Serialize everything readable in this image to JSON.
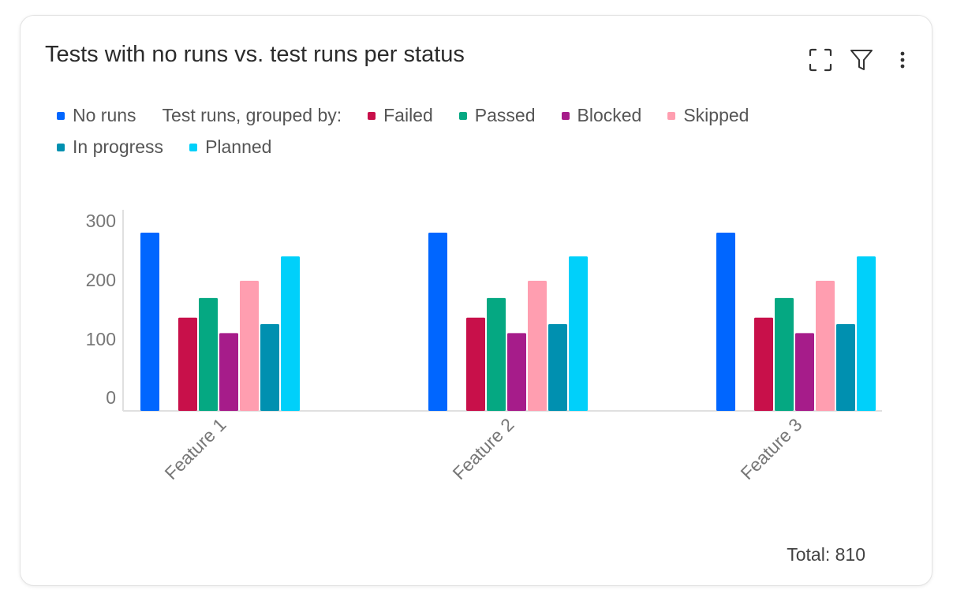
{
  "widget": {
    "title": "Tests with no runs vs. test runs per status",
    "total_label": "Total: 810"
  },
  "icons": {
    "expand": "expand-icon",
    "filter": "filter-icon",
    "more": "more-vertical-icon"
  },
  "legend": {
    "caption": "Test runs, grouped by:",
    "no_runs": {
      "label": "No runs",
      "color": "#0066ff"
    },
    "statuses": [
      {
        "label": "Failed",
        "color": "#c8104a"
      },
      {
        "label": "Passed",
        "color": "#05a882"
      },
      {
        "label": "Blocked",
        "color": "#a61c8a"
      },
      {
        "label": "Skipped",
        "color": "#ff9eb0"
      },
      {
        "label": "In progress",
        "color": "#0090b0"
      },
      {
        "label": "Planned",
        "color": "#00d0fa"
      }
    ]
  },
  "chart_data": {
    "type": "bar",
    "categories": [
      "Feature 1",
      "Feature 2",
      "Feature 3"
    ],
    "ylim": [
      0,
      300
    ],
    "yticks": [
      0,
      100,
      200,
      300
    ],
    "series": [
      {
        "name": "No runs",
        "color": "#0066ff",
        "values": [
          300,
          300,
          300
        ]
      },
      {
        "name": "Failed",
        "color": "#c8104a",
        "values": [
          157,
          157,
          157
        ]
      },
      {
        "name": "Passed",
        "color": "#05a882",
        "values": [
          190,
          190,
          190
        ]
      },
      {
        "name": "Blocked",
        "color": "#a61c8a",
        "values": [
          131,
          131,
          131
        ]
      },
      {
        "name": "Skipped",
        "color": "#ff9eb0",
        "values": [
          219,
          219,
          219
        ]
      },
      {
        "name": "In progress",
        "color": "#0090b0",
        "values": [
          146,
          146,
          146
        ]
      },
      {
        "name": "Planned",
        "color": "#00d0fa",
        "values": [
          260,
          260,
          260
        ]
      }
    ],
    "legend_position": "top-left",
    "grid": false
  }
}
